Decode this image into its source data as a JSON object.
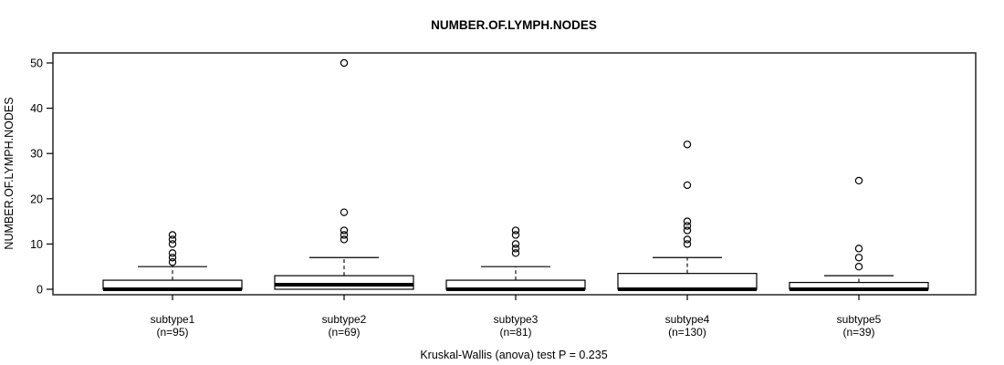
{
  "title": "NUMBER.OF.LYMPH.NODES",
  "footer": "Kruskal-Wallis (anova) test P = 0.235",
  "colors": {
    "background": "#ffffff",
    "frame": "#333333",
    "box_stroke": "#000000",
    "box_fill": "#ffffff",
    "median": "#000000",
    "text": "#000000"
  },
  "chart_data": {
    "type": "boxplot",
    "title": "NUMBER.OF.LYMPH.NODES",
    "xlabel": "",
    "ylabel": "NUMBER.OF.LYMPH.NODES",
    "ylim": [
      0,
      50
    ],
    "yticks": [
      0,
      10,
      20,
      30,
      40,
      50
    ],
    "grid": false,
    "annotation": "Kruskal-Wallis (anova) test P = 0.235",
    "groups": [
      {
        "label": "subtype1",
        "sublabel": "(n=95)",
        "n": 95,
        "whisker_low": 0,
        "q1": 0,
        "median": 0,
        "q3": 2,
        "whisker_high": 5,
        "outliers": [
          6,
          7,
          8,
          10,
          11,
          12
        ]
      },
      {
        "label": "subtype2",
        "sublabel": "(n=69)",
        "n": 69,
        "whisker_low": 0,
        "q1": 0,
        "median": 1,
        "q3": 3,
        "whisker_high": 7,
        "outliers": [
          11,
          12,
          13,
          17,
          50
        ]
      },
      {
        "label": "subtype3",
        "sublabel": "(n=81)",
        "n": 81,
        "whisker_low": 0,
        "q1": 0,
        "median": 0,
        "q3": 2,
        "whisker_high": 5,
        "outliers": [
          8,
          9,
          10,
          12,
          13
        ]
      },
      {
        "label": "subtype4",
        "sublabel": "(n=130)",
        "n": 130,
        "whisker_low": 0,
        "q1": 0,
        "median": 0,
        "q3": 3.5,
        "whisker_high": 7,
        "outliers": [
          10,
          11,
          13,
          14,
          15,
          23,
          32
        ]
      },
      {
        "label": "subtype5",
        "sublabel": "(n=39)",
        "n": 39,
        "whisker_low": 0,
        "q1": 0,
        "median": 0,
        "q3": 1.5,
        "whisker_high": 3,
        "outliers": [
          5,
          7,
          9,
          24
        ]
      }
    ]
  }
}
